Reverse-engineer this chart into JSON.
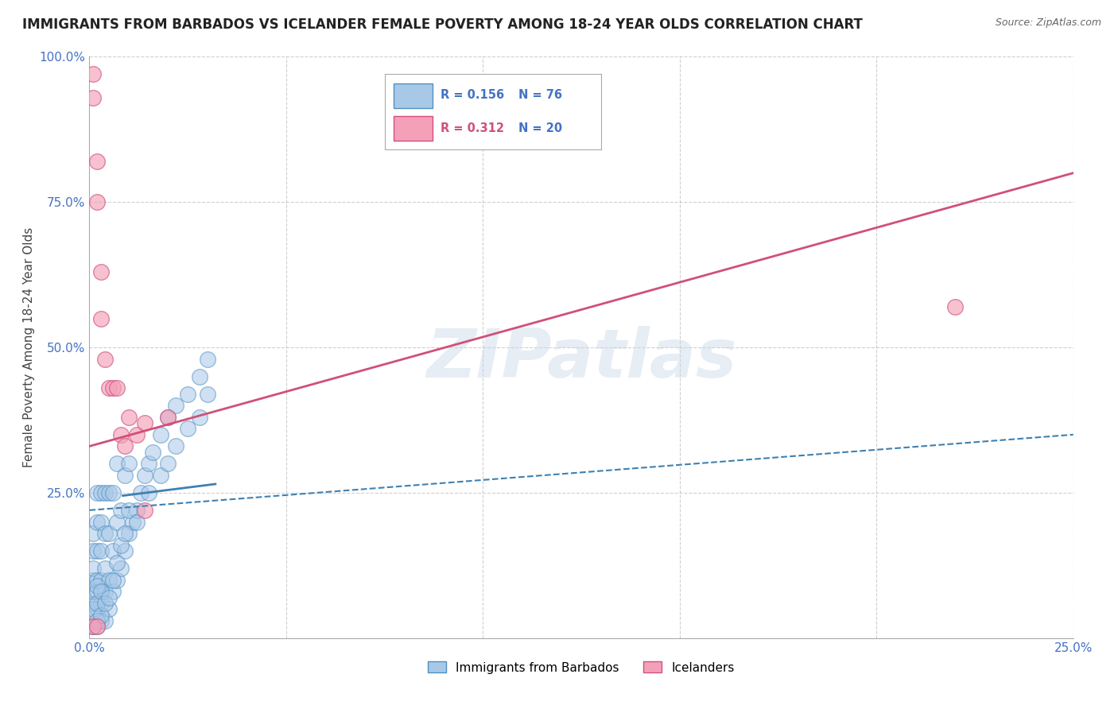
{
  "title": "IMMIGRANTS FROM BARBADOS VS ICELANDER FEMALE POVERTY AMONG 18-24 YEAR OLDS CORRELATION CHART",
  "source": "Source: ZipAtlas.com",
  "ylabel": "Female Poverty Among 18-24 Year Olds",
  "xlim": [
    0.0,
    0.25
  ],
  "ylim": [
    0.0,
    1.0
  ],
  "xtick_positions": [
    0.0,
    0.05,
    0.1,
    0.15,
    0.2,
    0.25
  ],
  "xtick_labels": [
    "0.0%",
    "",
    "",
    "",
    "",
    "25.0%"
  ],
  "ytick_positions": [
    0.0,
    0.25,
    0.5,
    0.75,
    1.0
  ],
  "ytick_labels": [
    "",
    "25.0%",
    "50.0%",
    "75.0%",
    "100.0%"
  ],
  "legend_r1": "0.156",
  "legend_n1": "76",
  "legend_r2": "0.312",
  "legend_n2": "20",
  "color_blue_fill": "#a8c8e8",
  "color_blue_edge": "#5090c0",
  "color_pink_fill": "#f4a0b8",
  "color_pink_edge": "#d05080",
  "line_blue_color": "#4080b0",
  "line_pink_color": "#d0507a",
  "watermark": "ZIPatlas",
  "background_color": "#ffffff",
  "grid_color": "#bbbbbb",
  "title_fontsize": 12,
  "axis_label_fontsize": 11,
  "tick_fontsize": 11,
  "blue_scatter_x": [
    0.001,
    0.001,
    0.001,
    0.001,
    0.001,
    0.001,
    0.001,
    0.001,
    0.002,
    0.002,
    0.002,
    0.002,
    0.002,
    0.002,
    0.002,
    0.003,
    0.003,
    0.003,
    0.003,
    0.003,
    0.003,
    0.004,
    0.004,
    0.004,
    0.004,
    0.004,
    0.005,
    0.005,
    0.005,
    0.005,
    0.006,
    0.006,
    0.006,
    0.007,
    0.007,
    0.007,
    0.008,
    0.008,
    0.009,
    0.009,
    0.01,
    0.01,
    0.011,
    0.012,
    0.013,
    0.014,
    0.015,
    0.016,
    0.018,
    0.02,
    0.022,
    0.025,
    0.028,
    0.03,
    0.001,
    0.001,
    0.002,
    0.002,
    0.002,
    0.003,
    0.003,
    0.004,
    0.005,
    0.006,
    0.007,
    0.008,
    0.009,
    0.01,
    0.012,
    0.015,
    0.018,
    0.02,
    0.022,
    0.025,
    0.028,
    0.03
  ],
  "blue_scatter_y": [
    0.02,
    0.04,
    0.06,
    0.08,
    0.1,
    0.12,
    0.15,
    0.18,
    0.02,
    0.05,
    0.08,
    0.1,
    0.15,
    0.2,
    0.25,
    0.03,
    0.06,
    0.1,
    0.15,
    0.2,
    0.25,
    0.03,
    0.08,
    0.12,
    0.18,
    0.25,
    0.05,
    0.1,
    0.18,
    0.25,
    0.08,
    0.15,
    0.25,
    0.1,
    0.2,
    0.3,
    0.12,
    0.22,
    0.15,
    0.28,
    0.18,
    0.3,
    0.2,
    0.22,
    0.25,
    0.28,
    0.3,
    0.32,
    0.35,
    0.38,
    0.4,
    0.42,
    0.45,
    0.48,
    0.02,
    0.05,
    0.03,
    0.06,
    0.09,
    0.04,
    0.08,
    0.06,
    0.07,
    0.1,
    0.13,
    0.16,
    0.18,
    0.22,
    0.2,
    0.25,
    0.28,
    0.3,
    0.33,
    0.36,
    0.38,
    0.42
  ],
  "pink_scatter_x": [
    0.001,
    0.001,
    0.002,
    0.002,
    0.003,
    0.003,
    0.004,
    0.005,
    0.006,
    0.007,
    0.008,
    0.009,
    0.01,
    0.012,
    0.014,
    0.014,
    0.02,
    0.22,
    0.001,
    0.002
  ],
  "pink_scatter_y": [
    0.97,
    0.93,
    0.82,
    0.75,
    0.63,
    0.55,
    0.48,
    0.43,
    0.43,
    0.43,
    0.35,
    0.33,
    0.38,
    0.35,
    0.37,
    0.22,
    0.38,
    0.57,
    0.02,
    0.02
  ],
  "blue_line_x": [
    0.0,
    0.25
  ],
  "blue_line_y": [
    0.22,
    0.35
  ],
  "blue_solid_line_x": [
    0.0085,
    0.032
  ],
  "blue_solid_line_y": [
    0.245,
    0.265
  ],
  "pink_line_x": [
    0.0,
    0.25
  ],
  "pink_line_y": [
    0.33,
    0.8
  ]
}
